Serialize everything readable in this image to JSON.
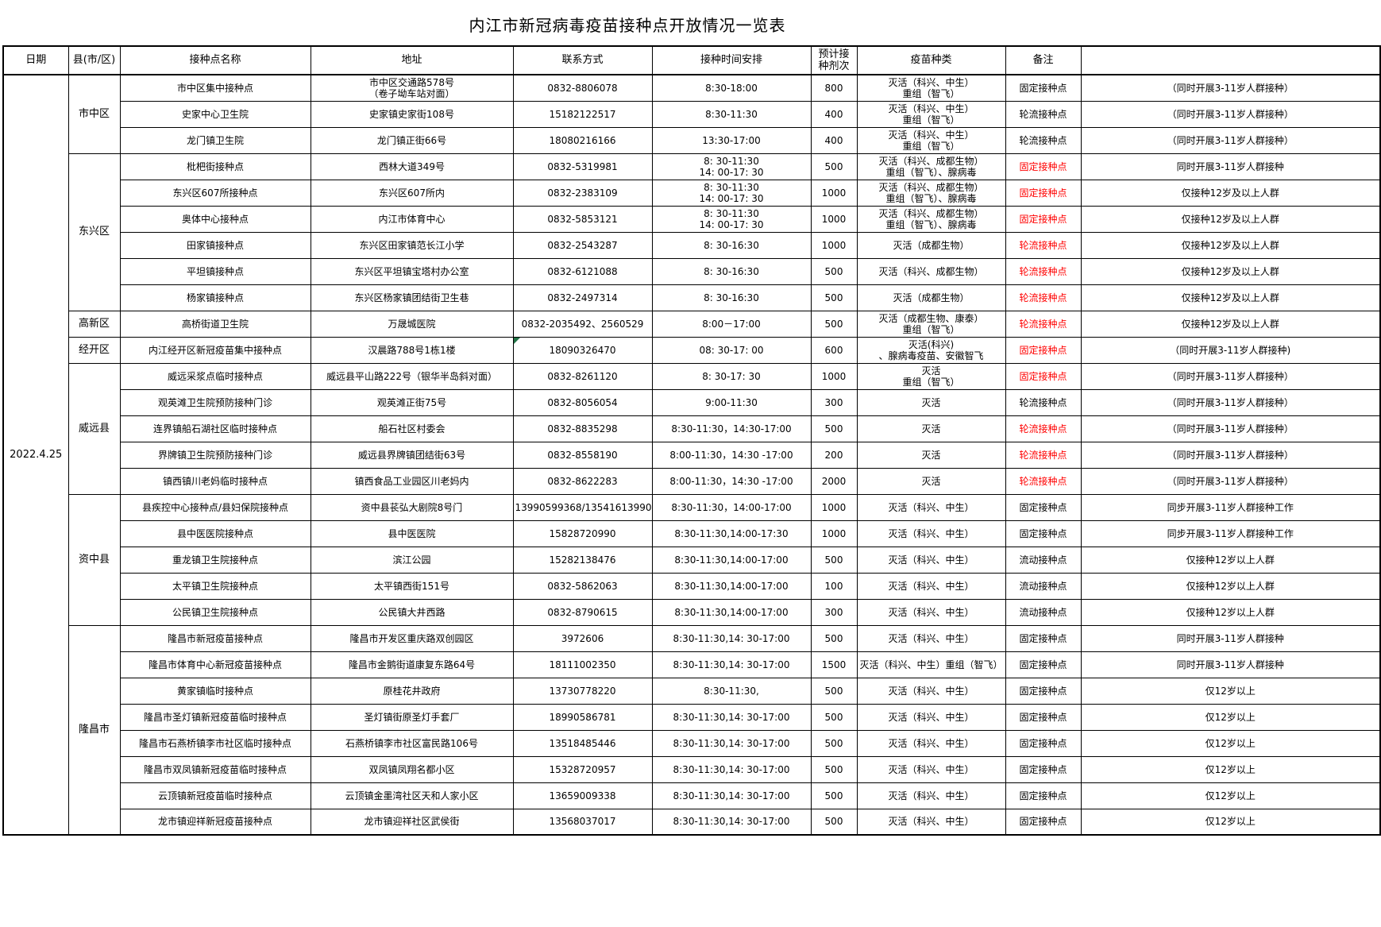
{
  "title": "内江市新冠病毒疫苗接种点开放情况一览表",
  "date": "2022.4.25",
  "columns": [
    "日期",
    "县(市/区)",
    "接种点名称",
    "地址",
    "联系方式",
    "接种时间安排",
    "预计接种剂次",
    "疫苗种类",
    "备注",
    ""
  ],
  "colors": {
    "highlight_red": "#ff0000",
    "marker_green": "#217346",
    "border": "#000000"
  },
  "districts": [
    {
      "name": "市中区",
      "rows": [
        {
          "name": "市中区集中接种点",
          "address": [
            "市中区交通路578号",
            "（卷子坳车站对面）"
          ],
          "contact": "0832-8806078",
          "time": "8:30-18:00",
          "doses": "800",
          "vaccine": [
            "灭活（科兴、中生）",
            "重组（智飞）"
          ],
          "remark": "固定接种点",
          "remark_red": false,
          "note": "（同时开展3-11岁人群接种）"
        },
        {
          "name": "史家中心卫生院",
          "address": "史家镇史家街108号",
          "contact": "15182122517",
          "time": "8:30-11:30",
          "doses": "400",
          "vaccine": [
            "灭活（科兴、中生）",
            "重组（智飞）"
          ],
          "remark": "轮流接种点",
          "remark_red": false,
          "note": "（同时开展3-11岁人群接种）"
        },
        {
          "name": "龙门镇卫生院",
          "address": "龙门镇正街66号",
          "contact": "18080216166",
          "time": "13:30-17:00",
          "doses": "400",
          "vaccine": [
            "灭活（科兴、中生）",
            "重组（智飞）"
          ],
          "remark": "轮流接种点",
          "remark_red": false,
          "note": "（同时开展3-11岁人群接种）"
        }
      ]
    },
    {
      "name": "东兴区",
      "rows": [
        {
          "name": "枇杷街接种点",
          "address": "西林大道349号",
          "contact": "0832-5319981",
          "time": [
            "8: 30-11:30",
            "14: 00-17: 30"
          ],
          "doses": "500",
          "vaccine": [
            "灭活（科兴、成都生物）",
            "重组（智飞）、腺病毒"
          ],
          "remark": "固定接种点",
          "remark_red": true,
          "note": "同时开展3-11岁人群接种"
        },
        {
          "name": "东兴区607所接种点",
          "address": "东兴区607所内",
          "contact": "0832-2383109",
          "time": [
            "8: 30-11:30",
            "14: 00-17: 30"
          ],
          "doses": "1000",
          "vaccine": [
            "灭活（科兴、成都生物）",
            "重组（智飞）、腺病毒"
          ],
          "remark": "固定接种点",
          "remark_red": true,
          "note": "仅接种12岁及以上人群"
        },
        {
          "name": "奥体中心接种点",
          "address": "内江市体育中心",
          "contact": "0832-5853121",
          "time": [
            "8: 30-11:30",
            "14: 00-17: 30"
          ],
          "doses": "1000",
          "vaccine": [
            "灭活（科兴、成都生物）",
            "重组（智飞）、腺病毒"
          ],
          "remark": "固定接种点",
          "remark_red": true,
          "note": "仅接种12岁及以上人群"
        },
        {
          "name": "田家镇接种点",
          "address": "东兴区田家镇范长江小学",
          "contact": "0832-2543287",
          "time": "8: 30-16:30",
          "doses": "1000",
          "vaccine": "灭活（成都生物）",
          "remark": "轮流接种点",
          "remark_red": true,
          "note": "仅接种12岁及以上人群"
        },
        {
          "name": "平坦镇接种点",
          "address": "东兴区平坦镇宝塔村办公室",
          "contact": "0832-6121088",
          "time": "8: 30-16:30",
          "doses": "500",
          "vaccine": "灭活（科兴、成都生物）",
          "remark": "轮流接种点",
          "remark_red": true,
          "note": "仅接种12岁及以上人群"
        },
        {
          "name": "杨家镇接种点",
          "address": "东兴区杨家镇团结街卫生巷",
          "contact": "0832-2497314",
          "time": "8: 30-16:30",
          "doses": "500",
          "vaccine": "灭活（成都生物）",
          "remark": "轮流接种点",
          "remark_red": true,
          "note": "仅接种12岁及以上人群"
        }
      ]
    },
    {
      "name": "高新区",
      "rows": [
        {
          "name": "高桥街道卫生院",
          "address": "万晟城医院",
          "contact": "0832-2035492、2560529",
          "time": "8:00－17:00",
          "doses": "500",
          "vaccine": [
            "灭活（成都生物、康泰）",
            "重组（智飞）"
          ],
          "remark": "轮流接种点",
          "remark_red": true,
          "note": "仅接种12岁及以上人群"
        }
      ]
    },
    {
      "name": "经开区",
      "rows": [
        {
          "name": "内江经开区新冠疫苗集中接种点",
          "address": "汉晨路788号1栋1楼",
          "contact": "18090326470",
          "green_marker": true,
          "time": "08: 30-17: 00",
          "doses": "600",
          "vaccine": [
            "灭活(科兴)",
            "、腺病毒疫苗、安徽智飞"
          ],
          "remark": "固定接种点",
          "remark_red": true,
          "note": "（同时开展3-11岁人群接种)"
        }
      ]
    },
    {
      "name": "威远县",
      "rows": [
        {
          "name": "威远采浆点临时接种点",
          "address": "威远县平山路222号（银华半岛斜对面）",
          "contact": "0832-8261120",
          "time": "8: 30-17: 30",
          "doses": "1000",
          "vaccine": [
            "灭活",
            "重组（智飞）"
          ],
          "remark": "固定接种点",
          "remark_red": true,
          "note": "（同时开展3-11岁人群接种）"
        },
        {
          "name": "观英滩卫生院预防接种门诊",
          "address": "观英滩正街75号",
          "contact": "0832-8056054",
          "time": "9:00-11:30",
          "doses": "300",
          "vaccine": "灭活",
          "remark": "轮流接种点",
          "remark_red": false,
          "note": "（同时开展3-11岁人群接种）"
        },
        {
          "name": "连界镇船石湖社区临时接种点",
          "address": "船石社区村委会",
          "contact": "0832-8835298",
          "time": "8:30-11:30，14:30-17:00",
          "doses": "500",
          "vaccine": "灭活",
          "remark": "轮流接种点",
          "remark_red": true,
          "note": "（同时开展3-11岁人群接种）"
        },
        {
          "name": "界牌镇卫生院预防接种门诊",
          "address": "威远县界牌镇团结街63号",
          "contact": "0832-8558190",
          "time": "8:00-11:30，14:30 -17:00",
          "doses": "200",
          "vaccine": "灭活",
          "remark": "轮流接种点",
          "remark_red": true,
          "note": "（同时开展3-11岁人群接种）"
        },
        {
          "name": "镇西镇川老妈临时接种点",
          "address": "镇西食品工业园区川老妈内",
          "contact": "0832-8622283",
          "time": "8:00-11:30，14:30 -17:00",
          "doses": "2000",
          "vaccine": "灭活",
          "remark": "轮流接种点",
          "remark_red": true,
          "note": "（同时开展3-11岁人群接种）"
        }
      ]
    },
    {
      "name": "资中县",
      "rows": [
        {
          "name": "县疾控中心接种点/县妇保院接种点",
          "address": "资中县苌弘大剧院8号门",
          "contact": "13990599368/13541613990",
          "time": "8:30-11:30，14:00-17:00",
          "doses": "1000",
          "vaccine": "灭活（科兴、中生）",
          "remark": "固定接种点",
          "remark_red": false,
          "note": "同步开展3-11岁人群接种工作"
        },
        {
          "name": "县中医医院接种点",
          "address": "县中医医院",
          "contact": "15828720990",
          "time": "8:30-11:30,14:00-17:30",
          "doses": "1000",
          "vaccine": "灭活（科兴、中生）",
          "remark": "固定接种点",
          "remark_red": false,
          "note": "同步开展3-11岁人群接种工作"
        },
        {
          "name": "重龙镇卫生院接种点",
          "address": "滨江公园",
          "contact": "15282138476",
          "time": "8:30-11:30,14:00-17:00",
          "doses": "500",
          "vaccine": "灭活（科兴、中生）",
          "remark": "流动接种点",
          "remark_red": false,
          "note": "仅接种12岁以上人群"
        },
        {
          "name": "太平镇卫生院接种点",
          "address": "太平镇西街151号",
          "contact": "0832-5862063",
          "time": "8:30-11:30,14:00-17:00",
          "doses": "100",
          "vaccine": "灭活（科兴、中生）",
          "remark": "流动接种点",
          "remark_red": false,
          "note": "仅接种12岁以上人群"
        },
        {
          "name": "公民镇卫生院接种点",
          "address": "公民镇大井西路",
          "contact": "0832-8790615",
          "time": "8:30-11:30,14:00-17:00",
          "doses": "300",
          "vaccine": "灭活（科兴、中生）",
          "remark": "流动接种点",
          "remark_red": false,
          "note": "仅接种12岁以上人群"
        }
      ]
    },
    {
      "name": "隆昌市",
      "rows": [
        {
          "name": "隆昌市新冠疫苗接种点",
          "address": "隆昌市开发区重庆路双创园区",
          "contact": "3972606",
          "time": "8:30-11:30,14: 30-17:00",
          "doses": "500",
          "vaccine": "灭活（科兴、中生）",
          "remark": "固定接种点",
          "remark_red": false,
          "note": "同时开展3-11岁人群接种"
        },
        {
          "name": "隆昌市体育中心新冠疫苗接种点",
          "address": "隆昌市金鹅街道康复东路64号",
          "contact": "18111002350",
          "time": "8:30-11:30,14: 30-17:00",
          "doses": "1500",
          "vaccine": "灭活（科兴、中生）重组（智飞）",
          "vaccine_clip": true,
          "remark": "固定接种点",
          "remark_red": false,
          "note": "同时开展3-11岁人群接种"
        },
        {
          "name": "黄家镇临时接种点",
          "address": "原桂花井政府",
          "contact": "13730778220",
          "time": "8:30-11:30,",
          "doses": "500",
          "vaccine": "灭活（科兴、中生）",
          "remark": "固定接种点",
          "remark_red": false,
          "note": "仅12岁以上"
        },
        {
          "name": "隆昌市圣灯镇新冠疫苗临时接种点",
          "address": "圣灯镇街原圣灯手套厂",
          "contact": "18990586781",
          "time": "8:30-11:30,14: 30-17:00",
          "doses": "500",
          "vaccine": "灭活（科兴、中生）",
          "remark": "固定接种点",
          "remark_red": false,
          "note": "仅12岁以上"
        },
        {
          "name": "隆昌市石燕桥镇李市社区临时接种点",
          "address": "石燕桥镇李市社区富民路106号",
          "contact": "13518485446",
          "time": "8:30-11:30,14: 30-17:00",
          "doses": "500",
          "vaccine": "灭活（科兴、中生）",
          "remark": "固定接种点",
          "remark_red": false,
          "note": "仅12岁以上"
        },
        {
          "name": "隆昌市双凤镇新冠疫苗临时接种点",
          "address": "双凤镇凤翔名都小区",
          "contact": "15328720957",
          "time": "8:30-11:30,14: 30-17:00",
          "doses": "500",
          "vaccine": "灭活（科兴、中生）",
          "remark": "固定接种点",
          "remark_red": false,
          "note": "仅12岁以上"
        },
        {
          "name": "云顶镇新冠疫苗临时接种点",
          "address": "云顶镇金墨湾社区天和人家小区",
          "contact": "13659009338",
          "time": "8:30-11:30,14: 30-17:00",
          "doses": "500",
          "vaccine": "灭活（科兴、中生）",
          "remark": "固定接种点",
          "remark_red": false,
          "note": "仅12岁以上"
        },
        {
          "name": "龙市镇迎祥新冠疫苗接种点",
          "address": "龙市镇迎祥社区武侯街",
          "contact": "13568037017",
          "time": "8:30-11:30,14: 30-17:00",
          "doses": "500",
          "vaccine": "灭活（科兴、中生）",
          "remark": "固定接种点",
          "remark_red": false,
          "note": "仅12岁以上"
        }
      ]
    }
  ]
}
